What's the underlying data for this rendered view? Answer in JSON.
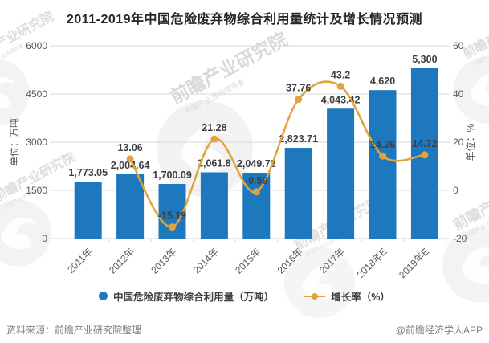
{
  "title": "2011-2019年中国危险废弃物综合利用量统计及增长情况预测",
  "colors": {
    "bar": "#1E78BE",
    "line": "#E2A33C",
    "grid": "#D9D9D9",
    "axis_text": "#595959",
    "data_label": "#3F3F3F",
    "footer_text": "#7F7F7F",
    "watermark": "#B5B5B5"
  },
  "chart_data": {
    "type": "bar+line combo",
    "categories": [
      "2011年",
      "2012年",
      "2013年",
      "2014年",
      "2015年",
      "2016年",
      "2017年",
      "2018年E",
      "2019年E"
    ],
    "series": [
      {
        "name": "中国危险废弃物综合利用量（万吨）",
        "type": "bar",
        "axis": "left",
        "values": [
          1773.05,
          2004.64,
          1700.09,
          2061.8,
          2049.72,
          2823.71,
          4043.42,
          4620,
          5300
        ],
        "labels": [
          "1,773.05",
          "2,004.64",
          "1,700.09",
          "2,061.8",
          "2,049.72",
          "2,823.71",
          "4,043.42",
          "4,620",
          "5,300"
        ]
      },
      {
        "name": "增长率（%）",
        "type": "line",
        "axis": "right",
        "values": [
          null,
          13.06,
          -15.19,
          21.28,
          -0.59,
          37.76,
          43.2,
          14.26,
          14.72
        ],
        "labels": [
          null,
          "13.06",
          "-15.19",
          "21.28",
          "-0.59",
          "37.76",
          "43.2",
          "14.26",
          "14.72"
        ]
      }
    ],
    "left_axis": {
      "title": "单位：万吨",
      "min": 0,
      "max": 6000,
      "ticks": [
        "6000",
        "4500",
        "3000",
        "1500",
        "0"
      ]
    },
    "right_axis": {
      "title": "单位：%",
      "min": -20,
      "max": 60,
      "ticks": [
        "60",
        "40",
        "20",
        "0",
        "-20"
      ]
    },
    "grid": true,
    "legend_position": "bottom"
  },
  "legend": [
    {
      "label": "中国危险废弃物综合利用量（万吨）",
      "marker": "circle",
      "color": "#1E78BE"
    },
    {
      "label": "增长率（%）",
      "marker": "line-dot",
      "color": "#E2A33C"
    }
  ],
  "watermark": {
    "brand": "前瞻产业研究院",
    "tagline": "中国产业咨询领导者"
  },
  "footer": {
    "source": "资料来源：前瞻产业研究院整理",
    "credit": "@前瞻经济学人APP"
  }
}
